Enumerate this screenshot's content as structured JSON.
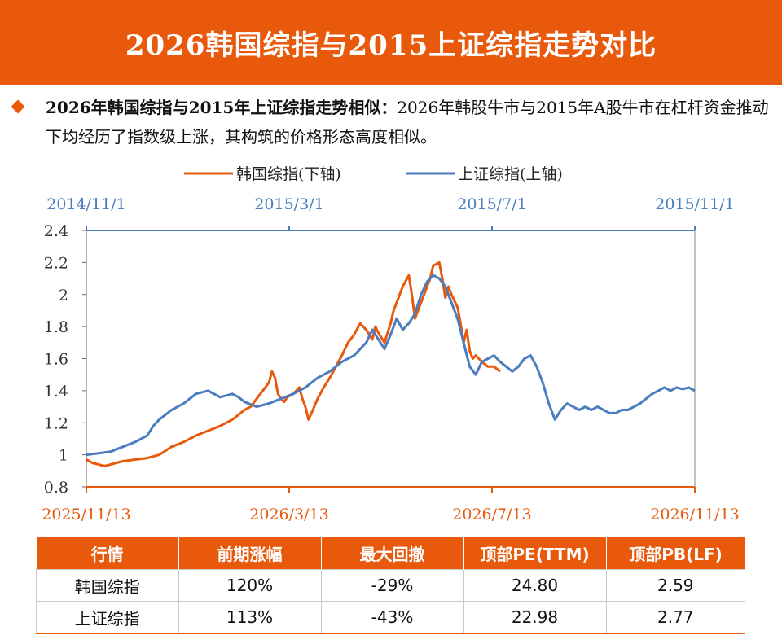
{
  "header": {
    "title": "2026韩国综指与2015上证综指走势对比"
  },
  "lead": {
    "bold": "2026年韩国综指与2015年上证综指走势相似：",
    "text": "2026年韩股牛市与2015年A股牛市在杠杆资金推动下均经历了指数级上涨，其构筑的价格形态高度相似。"
  },
  "colors": {
    "accent": "#E8590C",
    "korea": "#E8590C",
    "shanghai": "#4A7CC0"
  },
  "chart_data": {
    "type": "line",
    "legend_position": "top-center",
    "grid": false,
    "y_axis": {
      "ticks": [
        "0.8",
        "1",
        "1.2",
        "1.4",
        "1.6",
        "1.8",
        "2",
        "2.2",
        "2.4"
      ],
      "ylim": [
        0.8,
        2.4
      ]
    },
    "x_axis_bottom": {
      "ticks": [
        "2025/11/13",
        "2026/3/13",
        "2026/7/13",
        "2026/11/13"
      ],
      "range": [
        "2025/11/13",
        "2026/11/13"
      ]
    },
    "x_axis_top": {
      "ticks": [
        "2014/11/1",
        "2015/3/1",
        "2015/7/1",
        "2015/11/1"
      ],
      "range": [
        "2014/11/1",
        "2015/11/1"
      ]
    },
    "series": [
      {
        "name": "韩国综指(下轴)",
        "axis": "bottom",
        "x": [
          0,
          0.01,
          0.02,
          0.03,
          0.04,
          0.06,
          0.08,
          0.1,
          0.12,
          0.14,
          0.16,
          0.18,
          0.2,
          0.22,
          0.24,
          0.25,
          0.26,
          0.27,
          0.28,
          0.29,
          0.3,
          0.305,
          0.31,
          0.315,
          0.32,
          0.325,
          0.33,
          0.34,
          0.35,
          0.355,
          0.36,
          0.365,
          0.37,
          0.38,
          0.39,
          0.4,
          0.41,
          0.42,
          0.43,
          0.44,
          0.45,
          0.46,
          0.47,
          0.475,
          0.48,
          0.49,
          0.5,
          0.505,
          0.51,
          0.52,
          0.53,
          0.535,
          0.54,
          0.55,
          0.56,
          0.565,
          0.57,
          0.58,
          0.585,
          0.59,
          0.595,
          0.6,
          0.61,
          0.615,
          0.62,
          0.625,
          0.63,
          0.635,
          0.64,
          0.65,
          0.66,
          0.67,
          0.68
        ],
        "y": [
          0.97,
          0.95,
          0.94,
          0.93,
          0.94,
          0.96,
          0.97,
          0.98,
          1.0,
          1.05,
          1.08,
          1.12,
          1.15,
          1.18,
          1.22,
          1.25,
          1.28,
          1.3,
          1.35,
          1.4,
          1.45,
          1.52,
          1.48,
          1.38,
          1.35,
          1.33,
          1.36,
          1.38,
          1.42,
          1.35,
          1.3,
          1.22,
          1.26,
          1.35,
          1.42,
          1.48,
          1.55,
          1.62,
          1.7,
          1.75,
          1.82,
          1.78,
          1.72,
          1.8,
          1.76,
          1.7,
          1.82,
          1.9,
          1.95,
          2.05,
          2.12,
          2.0,
          1.85,
          1.95,
          2.05,
          2.1,
          2.18,
          2.2,
          2.1,
          1.98,
          2.05,
          2.0,
          1.92,
          1.82,
          1.7,
          1.78,
          1.65,
          1.6,
          1.62,
          1.58,
          1.55,
          1.55,
          1.52
        ]
      },
      {
        "name": "上证综指(上轴)",
        "axis": "top",
        "x": [
          0,
          0.02,
          0.04,
          0.06,
          0.08,
          0.1,
          0.11,
          0.12,
          0.13,
          0.14,
          0.15,
          0.16,
          0.17,
          0.18,
          0.2,
          0.22,
          0.24,
          0.25,
          0.26,
          0.28,
          0.3,
          0.32,
          0.34,
          0.36,
          0.38,
          0.4,
          0.42,
          0.44,
          0.46,
          0.47,
          0.48,
          0.49,
          0.5,
          0.51,
          0.52,
          0.53,
          0.54,
          0.55,
          0.56,
          0.57,
          0.58,
          0.59,
          0.6,
          0.61,
          0.62,
          0.63,
          0.64,
          0.65,
          0.66,
          0.67,
          0.68,
          0.69,
          0.7,
          0.71,
          0.72,
          0.73,
          0.74,
          0.75,
          0.76,
          0.77,
          0.78,
          0.79,
          0.8,
          0.81,
          0.82,
          0.83,
          0.84,
          0.85,
          0.86,
          0.87,
          0.88,
          0.89,
          0.9,
          0.91,
          0.92,
          0.93,
          0.94,
          0.95,
          0.96,
          0.97,
          0.98,
          0.99,
          1.0
        ],
        "y": [
          1.0,
          1.01,
          1.02,
          1.05,
          1.08,
          1.12,
          1.18,
          1.22,
          1.25,
          1.28,
          1.3,
          1.32,
          1.35,
          1.38,
          1.4,
          1.36,
          1.38,
          1.36,
          1.33,
          1.3,
          1.32,
          1.35,
          1.38,
          1.42,
          1.48,
          1.52,
          1.58,
          1.62,
          1.7,
          1.78,
          1.72,
          1.66,
          1.75,
          1.85,
          1.78,
          1.82,
          1.88,
          2.0,
          2.08,
          2.12,
          2.1,
          2.05,
          1.95,
          1.85,
          1.7,
          1.55,
          1.5,
          1.58,
          1.6,
          1.62,
          1.58,
          1.55,
          1.52,
          1.55,
          1.6,
          1.62,
          1.55,
          1.45,
          1.32,
          1.22,
          1.28,
          1.32,
          1.3,
          1.28,
          1.3,
          1.28,
          1.3,
          1.28,
          1.26,
          1.26,
          1.28,
          1.28,
          1.3,
          1.32,
          1.35,
          1.38,
          1.4,
          1.42,
          1.4,
          1.42,
          1.41,
          1.42,
          1.4
        ]
      }
    ]
  },
  "table": {
    "headers": [
      "行情",
      "前期涨幅",
      "最大回撤",
      "顶部PE(TTM)",
      "顶部PB(LF)"
    ],
    "rows": [
      [
        "韩国综指",
        "120%",
        "-29%",
        "24.80",
        "2.59"
      ],
      [
        "上证综指",
        "113%",
        "-43%",
        "22.98",
        "2.77"
      ]
    ]
  }
}
